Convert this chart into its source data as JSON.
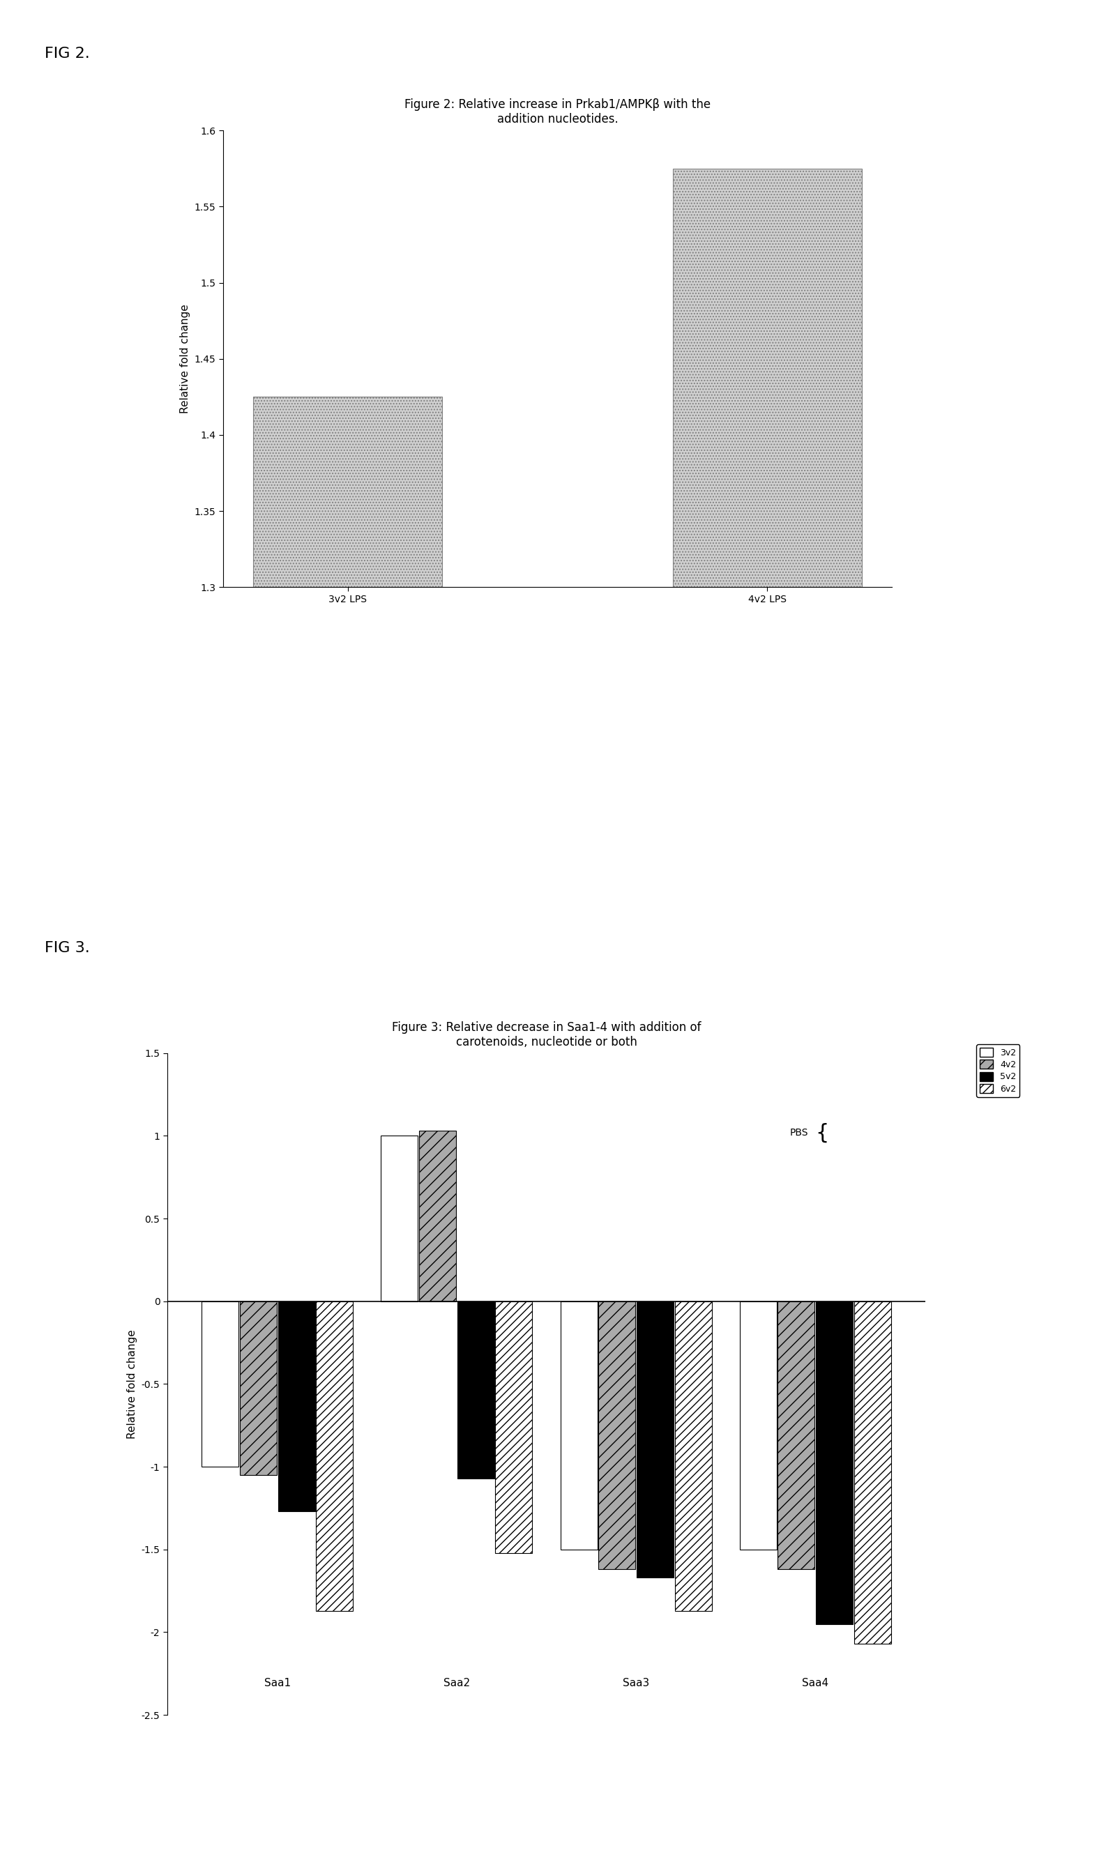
{
  "fig2_title": "Figure 2: Relative increase in Prkab1/AMPKβ with the\naddition nucleotides.",
  "fig2_categories": [
    "3v2 LPS",
    "4v2 LPS"
  ],
  "fig2_values": [
    1.425,
    1.575
  ],
  "fig2_ylim": [
    1.3,
    1.6
  ],
  "fig2_yticks": [
    1.3,
    1.35,
    1.4,
    1.45,
    1.5,
    1.55,
    1.6
  ],
  "fig2_ylabel": "Relative fold change",
  "fig2_bar_color": "#c8c8c8",
  "fig3_title": "Figure 3: Relative decrease in Saa1-4 with addition of\ncarotenoids, nucleotide or both",
  "fig3_groups": [
    "Saa1",
    "Saa2",
    "Saa3",
    "Saa4"
  ],
  "fig3_series": [
    "3v2",
    "4v2",
    "5v2",
    "6v2"
  ],
  "fig3_values": [
    [
      -1.0,
      1.0,
      -1.5,
      -1.5
    ],
    [
      -1.05,
      1.03,
      -1.62,
      -1.62
    ],
    [
      -1.27,
      -1.07,
      -1.67,
      -1.95
    ],
    [
      -1.87,
      -1.52,
      -1.87,
      -2.07
    ]
  ],
  "fig3_ylim": [
    -2.5,
    1.5
  ],
  "fig3_yticks": [
    -2.5,
    -2.0,
    -1.5,
    -1.0,
    -0.5,
    0.0,
    0.5,
    1.0,
    1.5
  ],
  "fig3_ylabel": "Relative fold change",
  "fig3_bar_colors": [
    "white",
    "#aaaaaa",
    "black",
    "white"
  ],
  "fig3_hatches": [
    "",
    "//",
    "",
    "///"
  ],
  "fig3_edgecolors": [
    "black",
    "black",
    "black",
    "black"
  ],
  "fig3_legend_labels": [
    "3v2",
    "4v2",
    "5v2",
    "6v2"
  ],
  "fig3_pbs_label": "PBS",
  "background_color": "#ffffff",
  "fig_label_fontsize": 16,
  "title_fontsize": 12,
  "axis_fontsize": 11,
  "tick_fontsize": 10
}
